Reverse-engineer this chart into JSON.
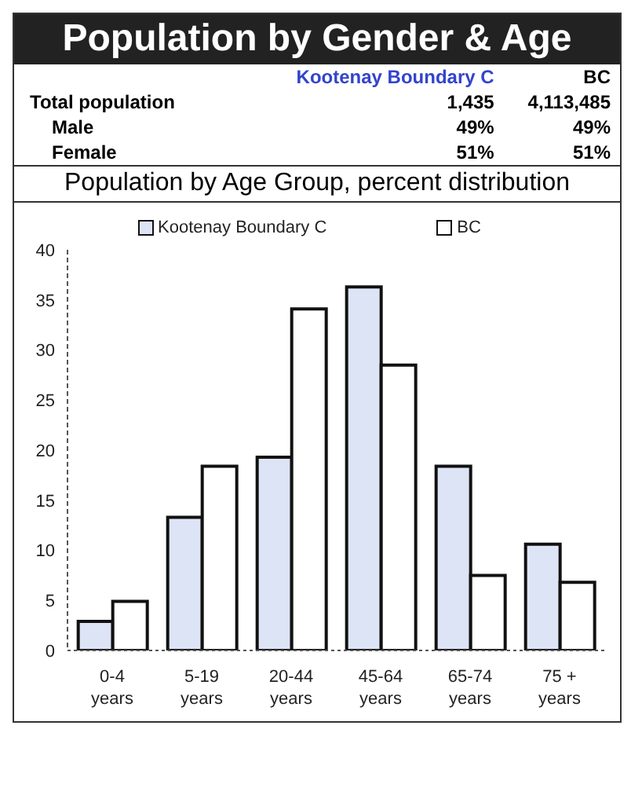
{
  "chart_data": {
    "type": "bar",
    "title": "Population by Gender & Age",
    "subtitle": "Population by Age Group, percent distribution",
    "annotations": [
      "Kootenay Boundary C",
      "BC",
      "Total population",
      "1,435",
      "4,113,485",
      "Male",
      "49%",
      "49%",
      "Female",
      "51%",
      "51%"
    ],
    "categories": [
      "0-4 years",
      "5-19 years",
      "20-44 years",
      "45-64 years",
      "65-74 years",
      "75 + years"
    ],
    "series": [
      {
        "name": "Kootenay Boundary C",
        "color": "#dde4f5",
        "values": [
          2.9,
          13.3,
          19.3,
          36.3,
          18.4,
          10.6
        ]
      },
      {
        "name": "BC",
        "color": "#ffffff",
        "values": [
          4.9,
          18.4,
          34.1,
          28.5,
          7.5,
          6.8
        ]
      }
    ],
    "ylim": [
      0,
      40
    ],
    "yticks": [
      0,
      5,
      10,
      15,
      20,
      25,
      30,
      35,
      40
    ],
    "grid": false,
    "legend": "top"
  }
}
